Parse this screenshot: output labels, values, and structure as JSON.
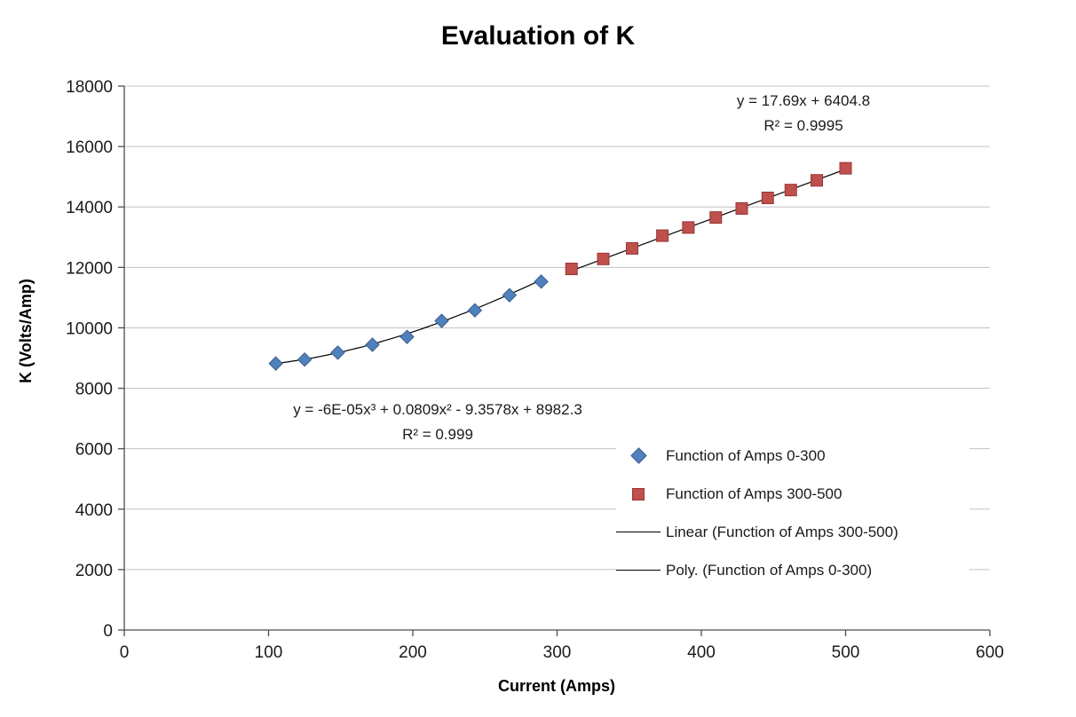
{
  "chart_data": {
    "type": "scatter",
    "title": "Evaluation of K",
    "xlabel": "Current (Amps)",
    "ylabel": "K (Volts/Amp)",
    "xlim": [
      0,
      600
    ],
    "ylim": [
      0,
      18000
    ],
    "x_ticks": [
      0,
      100,
      200,
      300,
      400,
      500,
      600
    ],
    "y_ticks": [
      0,
      2000,
      4000,
      6000,
      8000,
      10000,
      12000,
      14000,
      16000,
      18000
    ],
    "grid": "horizontal",
    "colors": {
      "blue_fill": "#4F81BD",
      "blue_border": "#385D8A",
      "red_fill": "#C0504D",
      "red_border": "#963634",
      "gridline": "#c3c3c3",
      "axis": "#4d4d4d",
      "trendline": "#000000",
      "tick_text": "#1a1a1a"
    },
    "series": [
      {
        "name": "Function of Amps 0-300",
        "marker": "diamond",
        "x": [
          105,
          125,
          148,
          172,
          196,
          220,
          243,
          267,
          289
        ],
        "y": [
          8820,
          8950,
          9180,
          9440,
          9700,
          10230,
          10580,
          11080,
          11530
        ]
      },
      {
        "name": "Function of Amps 300-500",
        "marker": "square",
        "x": [
          310,
          332,
          352,
          373,
          391,
          410,
          428,
          446,
          462,
          480,
          500
        ],
        "y": [
          11950,
          12280,
          12630,
          13050,
          13320,
          13650,
          13950,
          14300,
          14560,
          14880,
          15280
        ]
      }
    ],
    "trendlines": [
      {
        "name": "Linear (Function of Amps 300-500)",
        "type": "linear",
        "coeffs": [
          6404.8,
          17.69
        ],
        "x_range": [
          308,
          502
        ],
        "equation": "y = 17.69x + 6404.8",
        "r2": "R² = 0.9995"
      },
      {
        "name": "Poly. (Function of Amps 0-300)",
        "type": "poly3",
        "coeffs": [
          8982.3,
          -9.3578,
          0.0809,
          -6e-05
        ],
        "x_range": [
          105,
          289
        ],
        "equation": "y = -6E-05x³ + 0.0809x² - 9.3578x + 8982.3",
        "r2": "R² = 0.999"
      }
    ],
    "legend": [
      {
        "label": "Function of Amps 0-300",
        "marker": "diamond"
      },
      {
        "label": "Function of Amps 300-500",
        "marker": "square"
      },
      {
        "label": "Linear (Function of Amps 300-500)",
        "marker": "line"
      },
      {
        "label": "Poly. (Function of Amps 0-300)",
        "marker": "line"
      }
    ]
  }
}
